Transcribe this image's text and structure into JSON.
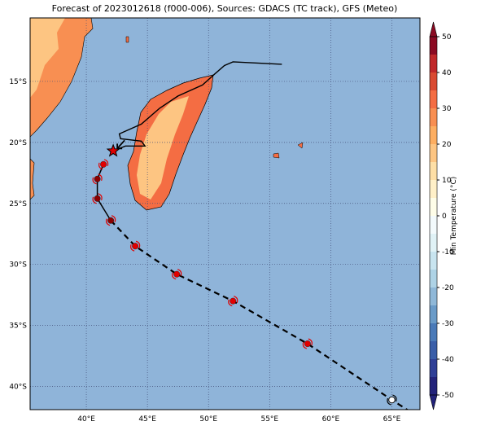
{
  "title": "Forecast of 2023012618 (f000-006), Sources: GDACS (TC track), GFS (Meteo)",
  "map": {
    "xlim": [
      35.4,
      67.3
    ],
    "ylim": [
      -41.9,
      -9.8
    ],
    "xticks": [
      {
        "value": 40,
        "label": "40°E"
      },
      {
        "value": 45,
        "label": "45°E"
      },
      {
        "value": 50,
        "label": "50°E"
      },
      {
        "value": 55,
        "label": "55°E"
      },
      {
        "value": 60,
        "label": "60°E"
      },
      {
        "value": 65,
        "label": "65°E"
      }
    ],
    "yticks": [
      {
        "value": -15,
        "label": "15°S"
      },
      {
        "value": -20,
        "label": "20°S"
      },
      {
        "value": -25,
        "label": "25°S"
      },
      {
        "value": -30,
        "label": "30°S"
      },
      {
        "value": -35,
        "label": "35°S"
      },
      {
        "value": -40,
        "label": "40°S"
      }
    ],
    "grid": true
  },
  "colorbar": {
    "label": "Min Temperature (°C)",
    "lim": [
      -50,
      50
    ],
    "ticks": [
      -50,
      -40,
      -30,
      -20,
      -10,
      0,
      10,
      20,
      30,
      40,
      50
    ],
    "levels": [
      -50,
      -45,
      -40,
      -35,
      -30,
      -25,
      -20,
      -15,
      -10,
      -5,
      0,
      5,
      10,
      15,
      20,
      25,
      30,
      35,
      40,
      45,
      50
    ],
    "colors": [
      "#23237a",
      "#2f3f96",
      "#3a5ea8",
      "#4a7ab8",
      "#6a9bc8",
      "#8fb8d8",
      "#aed3e6",
      "#c8e4ef",
      "#e0f2f6",
      "#f3fafc",
      "#fefde8",
      "#fff0c8",
      "#fedfa6",
      "#fdc582",
      "#fdae61",
      "#f88f52",
      "#f46d43",
      "#d94a32",
      "#c0282a",
      "#8b0a22"
    ]
  },
  "observed_track": {
    "lon": [
      56,
      54,
      52,
      51.3,
      50.5,
      49.5,
      47.5,
      46,
      44.5,
      42.7,
      42.8,
      44.5,
      44.8,
      43.2,
      42.2
    ],
    "lat": [
      -13.6,
      -13.5,
      -13.4,
      -13.7,
      -14.4,
      -15.3,
      -16.2,
      -17.2,
      -18.5,
      -19.3,
      -19.7,
      -19.9,
      -20.3,
      -20.3,
      -20.7
    ]
  },
  "current": {
    "lon": 42.2,
    "lat": -20.7
  },
  "forecast": {
    "lon": [
      41.4,
      40.9,
      40.9,
      42.0,
      44.0,
      47.4,
      52.0,
      58.1,
      65.0
    ],
    "lat": [
      -21.8,
      -23.0,
      -24.6,
      -26.4,
      -28.5,
      -30.8,
      -33.0,
      -36.5,
      -41.1
    ],
    "colors": [
      "#e00000",
      "#8b0000",
      "#8b0000",
      "#8b0000",
      "#e00000",
      "#e00000",
      "#e00000",
      "#e00000",
      "#ffffff"
    ]
  }
}
